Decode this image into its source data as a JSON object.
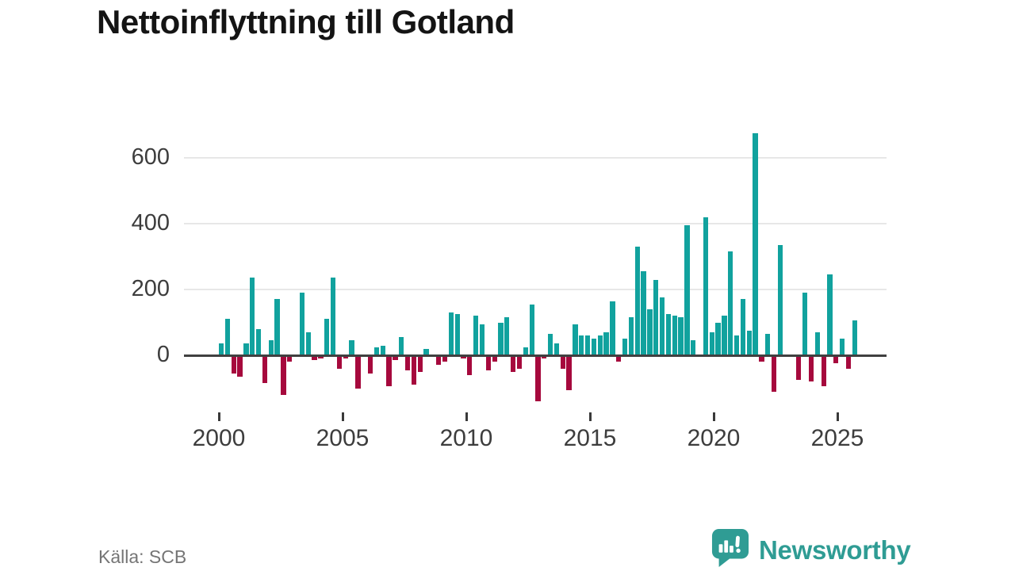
{
  "title": "Nettoinflyttning till Gotland",
  "source": "Källa: SCB",
  "logo": {
    "text": "Newsworthy",
    "icon": "newsworthy-speech-bubble-bar-chart-icon",
    "color": "#2f9c94"
  },
  "chart_data": {
    "type": "bar",
    "title": "Nettoinflyttning till Gotland",
    "x_start": "2000 Q1",
    "frequency": "quarterly",
    "x_tick_labels": [
      "2000",
      "2005",
      "2010",
      "2015",
      "2020",
      "2025"
    ],
    "y_ticks": [
      0,
      200,
      400,
      600
    ],
    "ylim": [
      -175,
      700
    ],
    "grid": "horizontal",
    "legend": "none",
    "positive_color": "#11a29e",
    "negative_color": "#a6093d",
    "values": [
      35,
      110,
      -55,
      -65,
      35,
      235,
      80,
      -85,
      45,
      170,
      -120,
      -20,
      0,
      190,
      70,
      -15,
      -10,
      110,
      235,
      -40,
      -10,
      45,
      -100,
      0,
      -55,
      25,
      30,
      -95,
      -15,
      55,
      -45,
      -90,
      -50,
      20,
      0,
      -30,
      -20,
      130,
      125,
      -10,
      -60,
      120,
      95,
      -45,
      -20,
      100,
      115,
      -50,
      -40,
      25,
      155,
      -140,
      -10,
      65,
      35,
      -40,
      -105,
      95,
      60,
      60,
      50,
      60,
      70,
      165,
      -20,
      50,
      115,
      330,
      255,
      140,
      230,
      175,
      125,
      120,
      115,
      395,
      45,
      0,
      420,
      70,
      100,
      120,
      315,
      60,
      170,
      75,
      675,
      -20,
      65,
      -110,
      335,
      0,
      0,
      -75,
      190,
      -80,
      70,
      -95,
      245,
      -25,
      50,
      -40,
      105
    ]
  }
}
